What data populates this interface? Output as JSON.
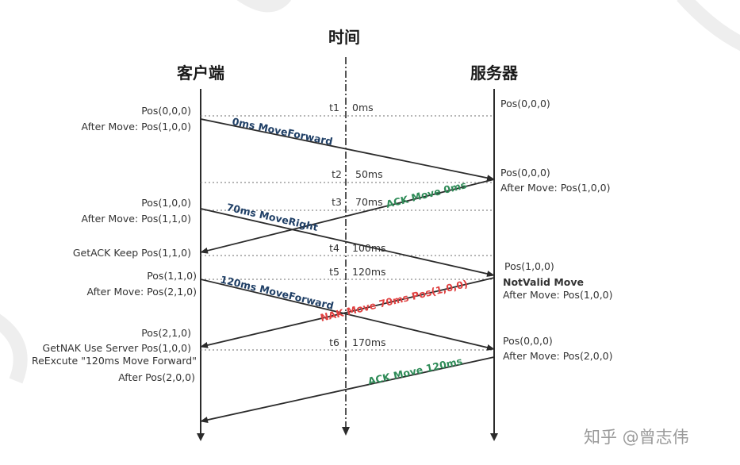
{
  "headers": {
    "time": "时间",
    "client": "客户端",
    "server": "服务器"
  },
  "time_markers": [
    "t1",
    "0ms",
    "t2",
    "50ms",
    "t3",
    "70ms",
    "t4",
    "100ms",
    "t5",
    "120ms",
    "t6",
    "170ms"
  ],
  "client_labels": [
    "Pos(0,0,0)",
    "After Move: Pos(1,0,0)",
    "Pos(1,0,0)",
    "After Move: Pos(1,1,0)",
    "GetACK Keep Pos(1,1,0)",
    "Pos(1,1,0)",
    "After Move: Pos(2,1,0)",
    "Pos(2,1,0)",
    "GetNAK Use Server Pos(1,0,0)",
    "ReExcute \"120ms Move Forward\"",
    "After Pos(2,0,0)"
  ],
  "server_labels": [
    "Pos(0,0,0)",
    "Pos(0,0,0)",
    "After Move: Pos(1,0,0)",
    "Pos(1,0,0)",
    "NotValid Move",
    "After Move: Pos(1,0,0)",
    "Pos(0,0,0)",
    "After Move: Pos(2,0,0)"
  ],
  "messages": [
    "0ms MoveForward",
    "ACK Move 0ms",
    "70ms MoveRight",
    "120ms MoveForward",
    "NAK Move 70ms Pos(1,0,0)",
    "ACK Move 120ms"
  ],
  "watermark": "知乎 @曾志伟",
  "colors": {
    "line": "#2b2b2b",
    "dotted": "#8a8a8a",
    "request": "#1f3f66",
    "ack": "#2e8b57",
    "nak": "#e04040",
    "text": "#333333"
  }
}
